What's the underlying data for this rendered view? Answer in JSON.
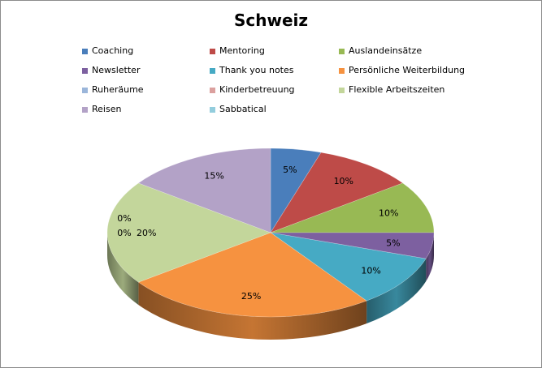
{
  "chart_data": {
    "type": "pie",
    "title": "Schweiz",
    "legend_position": "top",
    "categories": [
      "Coaching",
      "Mentoring",
      "Auslandeinsätze",
      "Newsletter",
      "Thank you notes",
      "Persönliche Weiterbildung",
      "Ruheräume",
      "Kinderbetreuung",
      "Flexible Arbeitszeiten",
      "Reisen",
      "Sabbatical"
    ],
    "values": [
      5,
      10,
      10,
      5,
      10,
      25,
      0,
      0,
      20,
      15,
      0
    ],
    "value_labels": [
      "5%",
      "10%",
      "10%",
      "5%",
      "10%",
      "25%",
      "0%",
      "0%",
      "20%",
      "15%",
      "0%"
    ],
    "colors": [
      "#4a7ebb",
      "#be4b48",
      "#98b954",
      "#7d60a0",
      "#46aac4",
      "#f69240",
      "#9bb6da",
      "#dba09e",
      "#c3d69b",
      "#b3a2c7",
      "#93cddd"
    ]
  }
}
